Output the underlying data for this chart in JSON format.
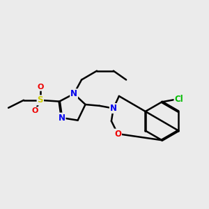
{
  "background_color": "#ebebeb",
  "bond_color": "#000000",
  "bond_width": 1.8,
  "atom_colors": {
    "N": "#0000ee",
    "O": "#ee0000",
    "S": "#cccc00",
    "Cl": "#00bb00",
    "C": "#000000"
  },
  "font_size": 8.5,
  "title": ""
}
